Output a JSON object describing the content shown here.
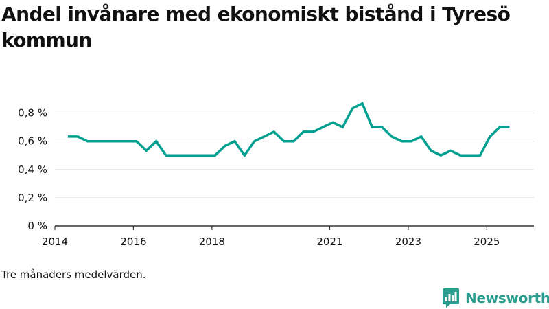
{
  "header": {
    "title": "Andel invånare med ekonomiskt bistånd i Tyresö kommun"
  },
  "footer": {
    "note": "Tre månaders medelvärden.",
    "brand": "Newsworthy"
  },
  "colors": {
    "line": "#00a091",
    "grid": "#dddddd",
    "axis": "#333333",
    "brand": "#2a9d8f"
  },
  "chart_data": {
    "type": "line",
    "title": "Andel invånare med ekonomiskt bistånd i Tyresö kommun",
    "xlabel": "",
    "ylabel": "",
    "xlim": [
      2014.0,
      2026.2
    ],
    "ylim": [
      0,
      0.9
    ],
    "x_ticks": [
      {
        "value": 2014,
        "label": "2014"
      },
      {
        "value": 2016,
        "label": "2016"
      },
      {
        "value": 2018,
        "label": "2018"
      },
      {
        "value": 2021,
        "label": "2021"
      },
      {
        "value": 2023,
        "label": "2023"
      },
      {
        "value": 2025,
        "label": "2025"
      }
    ],
    "y_ticks": [
      {
        "value": 0,
        "label": "0 %"
      },
      {
        "value": 0.2,
        "label": "0,2 %"
      },
      {
        "value": 0.4,
        "label": "0,4 %"
      },
      {
        "value": 0.6,
        "label": "0,6 %"
      },
      {
        "value": 0.8,
        "label": "0,8 %"
      }
    ],
    "grid": true,
    "series": [
      {
        "name": "Andel invånare med ekonomiskt bistånd",
        "x": [
          2014.33,
          2014.58,
          2014.83,
          2015.08,
          2015.33,
          2015.58,
          2015.83,
          2016.08,
          2016.33,
          2016.58,
          2016.83,
          2017.08,
          2017.33,
          2017.58,
          2017.83,
          2018.08,
          2018.33,
          2018.58,
          2018.83,
          2019.08,
          2019.33,
          2019.58,
          2019.83,
          2020.08,
          2020.33,
          2020.58,
          2020.83,
          2021.08,
          2021.33,
          2021.58,
          2021.83,
          2022.08,
          2022.33,
          2022.58,
          2022.83,
          2023.08,
          2023.33,
          2023.58,
          2023.83,
          2024.08,
          2024.33,
          2024.58,
          2024.83,
          2025.08,
          2025.33,
          2025.58
        ],
        "values": [
          0.633,
          0.633,
          0.6,
          0.6,
          0.6,
          0.6,
          0.6,
          0.6,
          0.533,
          0.6,
          0.5,
          0.5,
          0.5,
          0.5,
          0.5,
          0.5,
          0.567,
          0.6,
          0.5,
          0.6,
          0.633,
          0.667,
          0.6,
          0.6,
          0.667,
          0.667,
          0.7,
          0.733,
          0.7,
          0.833,
          0.867,
          0.7,
          0.7,
          0.633,
          0.6,
          0.6,
          0.633,
          0.533,
          0.5,
          0.533,
          0.5,
          0.5,
          0.5,
          0.633,
          0.7,
          0.7
        ]
      }
    ]
  }
}
